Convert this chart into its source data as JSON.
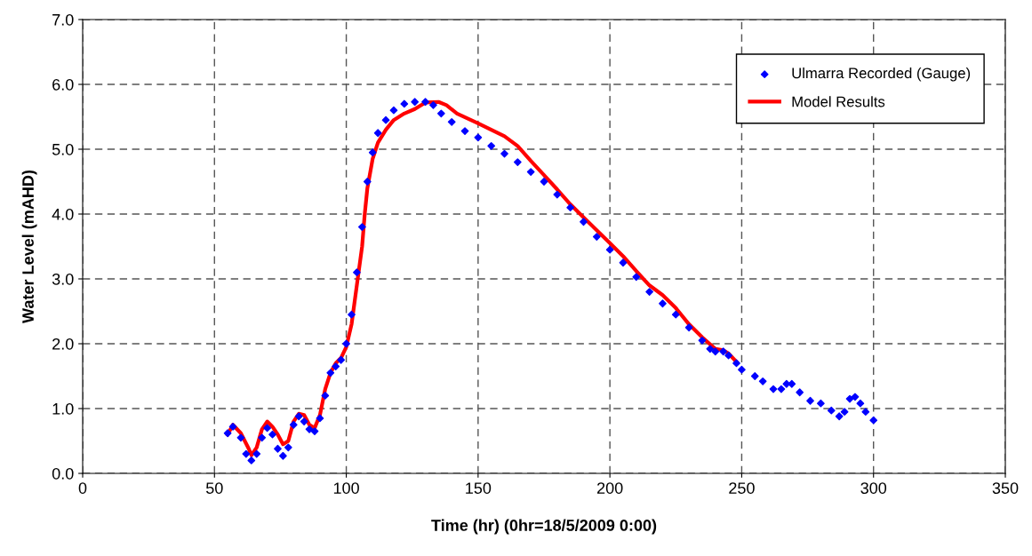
{
  "chart_data": {
    "type": "line",
    "xlabel": "Time (hr) (0hr=18/5/2009 0:00)",
    "ylabel": "Water Level (mAHD)",
    "xlim": [
      0,
      350
    ],
    "xticks": [
      0,
      50,
      100,
      150,
      200,
      250,
      300,
      350
    ],
    "ylim": [
      0,
      7
    ],
    "yticks": [
      {
        "value": 0,
        "label": "0.0"
      },
      {
        "value": 1,
        "label": "1.0"
      },
      {
        "value": 2,
        "label": "2.0"
      },
      {
        "value": 3,
        "label": "3.0"
      },
      {
        "value": 4,
        "label": "4.0"
      },
      {
        "value": 5,
        "label": "5.0"
      },
      {
        "value": 6,
        "label": "6.0"
      },
      {
        "value": 7,
        "label": "7.0"
      }
    ],
    "grid": true,
    "legend": "top right",
    "series": [
      {
        "name": "Ulmarra Recorded (Gauge)",
        "type": "scatter",
        "marker": "diamond",
        "color": "#0000ff",
        "x": [
          55,
          57,
          60,
          62,
          64,
          66,
          68,
          70,
          72,
          74,
          76,
          78,
          80,
          82,
          84,
          86,
          88,
          90,
          92,
          94,
          96,
          98,
          100,
          102,
          104,
          106,
          108,
          110,
          112,
          115,
          118,
          122,
          126,
          130,
          133,
          136,
          140,
          145,
          150,
          155,
          160,
          165,
          170,
          175,
          180,
          185,
          190,
          195,
          200,
          205,
          210,
          215,
          220,
          225,
          230,
          235,
          238,
          240,
          243,
          245,
          248,
          250,
          255,
          258,
          262,
          265,
          267,
          269,
          272,
          276,
          280,
          284,
          287,
          289,
          291,
          293,
          295,
          297,
          300
        ],
        "values": [
          0.62,
          0.72,
          0.55,
          0.3,
          0.2,
          0.3,
          0.55,
          0.7,
          0.6,
          0.38,
          0.27,
          0.4,
          0.75,
          0.88,
          0.8,
          0.68,
          0.65,
          0.85,
          1.2,
          1.55,
          1.65,
          1.75,
          2.0,
          2.45,
          3.1,
          3.8,
          4.5,
          4.95,
          5.25,
          5.45,
          5.6,
          5.7,
          5.73,
          5.73,
          5.68,
          5.55,
          5.42,
          5.28,
          5.18,
          5.05,
          4.93,
          4.8,
          4.65,
          4.5,
          4.3,
          4.1,
          3.88,
          3.65,
          3.45,
          3.25,
          3.03,
          2.8,
          2.62,
          2.45,
          2.25,
          2.05,
          1.92,
          1.88,
          1.88,
          1.82,
          1.7,
          1.6,
          1.5,
          1.42,
          1.3,
          1.3,
          1.38,
          1.38,
          1.25,
          1.12,
          1.08,
          0.97,
          0.88,
          0.95,
          1.15,
          1.18,
          1.08,
          0.95,
          0.82
        ]
      },
      {
        "name": "Model Results",
        "marker": "none",
        "line_style": "solid",
        "color": "#ff0000",
        "x": [
          55,
          57,
          60,
          63,
          64,
          66,
          68,
          70,
          72,
          74,
          76,
          78,
          80,
          82,
          84,
          86,
          88,
          90,
          92,
          94,
          96,
          98,
          100,
          102,
          104,
          106,
          107,
          108,
          110,
          112,
          115,
          118,
          122,
          126,
          130,
          135,
          138,
          142,
          150,
          160,
          165,
          170,
          175,
          180,
          185,
          190,
          195,
          200,
          205,
          210,
          215,
          220,
          225,
          230,
          235,
          240,
          243,
          245,
          248
        ],
        "values": [
          0.6,
          0.75,
          0.62,
          0.38,
          0.28,
          0.4,
          0.68,
          0.8,
          0.72,
          0.6,
          0.45,
          0.5,
          0.8,
          0.92,
          0.9,
          0.75,
          0.7,
          0.9,
          1.3,
          1.55,
          1.7,
          1.78,
          1.95,
          2.3,
          2.9,
          3.5,
          4.0,
          4.4,
          4.85,
          5.1,
          5.3,
          5.45,
          5.55,
          5.62,
          5.72,
          5.73,
          5.68,
          5.55,
          5.4,
          5.2,
          5.05,
          4.82,
          4.6,
          4.38,
          4.15,
          3.95,
          3.75,
          3.55,
          3.35,
          3.12,
          2.9,
          2.75,
          2.55,
          2.3,
          2.1,
          1.92,
          1.9,
          1.85,
          1.72
        ]
      }
    ]
  }
}
